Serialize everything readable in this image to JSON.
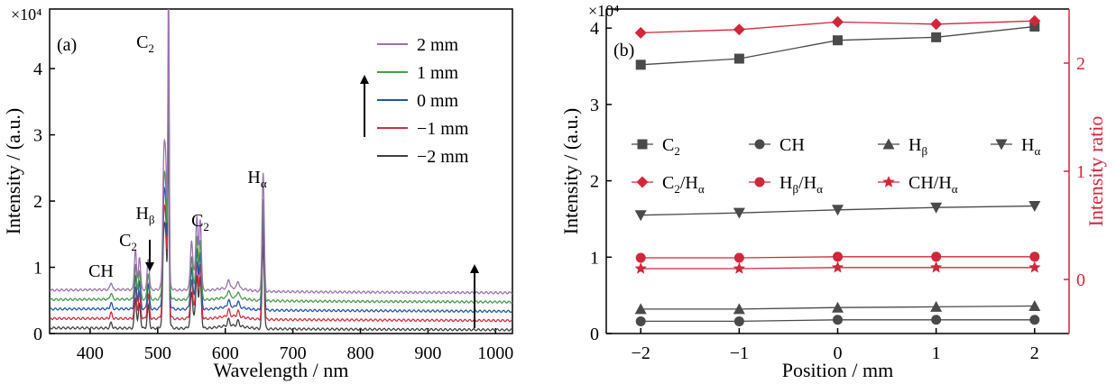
{
  "chart_data": [
    {
      "type": "line",
      "panel_label": "(a)",
      "xlabel": "Wavelength / nm",
      "ylabel": "Intensity / (a.u.)",
      "y_exponent": "×10⁴",
      "xlim": [
        340,
        1025
      ],
      "ylim": [
        0,
        4.9
      ],
      "xticks": [
        400,
        500,
        600,
        700,
        800,
        900,
        1000
      ],
      "yticks": [
        0,
        1,
        2,
        3,
        4
      ],
      "legend_position": "top-right",
      "series": [
        {
          "name": "2 mm",
          "color": "#9b72b0",
          "offset": 0.64
        },
        {
          "name": "1 mm",
          "color": "#4a9a4a",
          "offset": 0.5
        },
        {
          "name": "0 mm",
          "color": "#2456a8",
          "offset": 0.36
        },
        {
          "name": "−1 mm",
          "color": "#d03040",
          "offset": 0.22
        },
        {
          "name": "−2 mm",
          "color": "#404040",
          "offset": 0.08
        }
      ],
      "peaks": [
        {
          "x": 431,
          "h": 0.1
        },
        {
          "x": 467,
          "h": 0.55
        },
        {
          "x": 473,
          "h": 0.45
        },
        {
          "x": 486,
          "h": 0.42
        },
        {
          "x": 509,
          "h": 1.5
        },
        {
          "x": 512,
          "h": 1.3
        },
        {
          "x": 516,
          "h": 3.9
        },
        {
          "x": 550,
          "h": 0.55
        },
        {
          "x": 558,
          "h": 0.82
        },
        {
          "x": 563,
          "h": 0.9
        },
        {
          "x": 605,
          "h": 0.12
        },
        {
          "x": 619,
          "h": 0.1
        },
        {
          "x": 656,
          "h": 1.6
        }
      ],
      "annotations": [
        {
          "label": "CH",
          "x": 430
        },
        {
          "label": "C",
          "sub": "2",
          "x": 470
        },
        {
          "label": "H",
          "sub": "β",
          "x": 486
        },
        {
          "label": "C",
          "sub": "2",
          "x": 512
        },
        {
          "label": "C",
          "sub": "2",
          "x": 560
        },
        {
          "label": "H",
          "sub": "α",
          "x": 656
        }
      ]
    },
    {
      "type": "line",
      "panel_label": "(b)",
      "xlabel": "Position / mm",
      "ylabel": "Intensity / (a.u.)",
      "ylabel_right": "Intensity ratio",
      "y_exponent": "×10⁴",
      "x": [
        -2,
        -1,
        0,
        1,
        2
      ],
      "xticks": [
        "−2",
        "−1",
        "0",
        "1",
        "2"
      ],
      "xlim": [
        -2.35,
        2.35
      ],
      "ylim": [
        0,
        4.25
      ],
      "yticks": [
        0,
        1,
        2,
        3,
        4
      ],
      "ylim_right": [
        -0.5,
        2.5
      ],
      "yticks_right": [
        0,
        1,
        2
      ],
      "left_series": [
        {
          "name": "C",
          "sub": "2",
          "marker": "square",
          "color": "#4a4a4a",
          "values": [
            3.52,
            3.6,
            3.84,
            3.88,
            4.02
          ]
        },
        {
          "name": "CH",
          "sub": "",
          "marker": "circle",
          "color": "#4a4a4a",
          "values": [
            0.16,
            0.16,
            0.18,
            0.18,
            0.18
          ]
        },
        {
          "name": "H",
          "sub": "β",
          "marker": "triangle-up",
          "color": "#4a4a4a",
          "values": [
            0.32,
            0.32,
            0.34,
            0.35,
            0.36
          ]
        },
        {
          "name": "H",
          "sub": "α",
          "marker": "triangle-down",
          "color": "#4a4a4a",
          "values": [
            1.55,
            1.58,
            1.62,
            1.65,
            1.67
          ]
        }
      ],
      "right_series": [
        {
          "name": "C",
          "sub": "2",
          "suffix": "/H",
          "suffix_sub": "α",
          "marker": "diamond",
          "color": "#d0273a",
          "values": [
            2.28,
            2.31,
            2.38,
            2.36,
            2.39
          ]
        },
        {
          "name": "H",
          "sub": "β",
          "suffix": "/H",
          "suffix_sub": "α",
          "marker": "circle",
          "color": "#d0273a",
          "values": [
            0.2,
            0.2,
            0.21,
            0.21,
            0.21
          ]
        },
        {
          "name": "CH",
          "sub": "",
          "suffix": "/H",
          "suffix_sub": "α",
          "marker": "star",
          "color": "#d0273a",
          "values": [
            0.1,
            0.1,
            0.11,
            0.11,
            0.11
          ]
        }
      ]
    }
  ]
}
